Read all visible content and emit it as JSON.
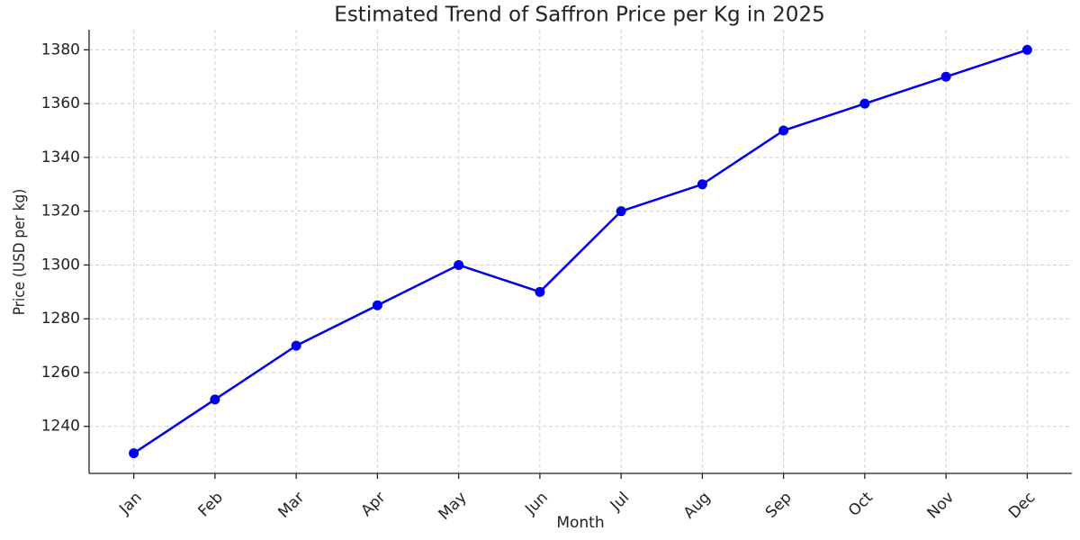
{
  "chart_data": {
    "type": "line",
    "title": "Estimated Trend of Saffron Price per Kg in 2025",
    "x_label": "Month",
    "y_label": "Price (USD per kg)",
    "categories": [
      "Jan",
      "Feb",
      "Mar",
      "Apr",
      "May",
      "Jun",
      "Jul",
      "Aug",
      "Sep",
      "Oct",
      "Nov",
      "Dec"
    ],
    "values": [
      1230,
      1250,
      1270,
      1285,
      1300,
      1290,
      1320,
      1330,
      1350,
      1360,
      1370,
      1380
    ],
    "color": "#0000ee",
    "ylim": [
      1222.5,
      1387.5
    ],
    "yticks": [
      1240,
      1260,
      1280,
      1300,
      1320,
      1340,
      1360,
      1380
    ],
    "grid": true
  }
}
